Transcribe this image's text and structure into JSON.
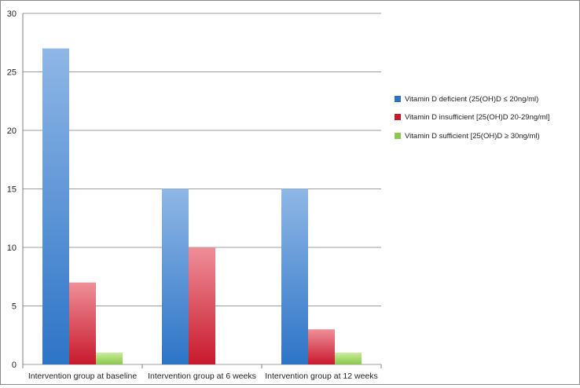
{
  "chart_data": {
    "type": "bar",
    "categories": [
      "Intervention group at baseline",
      "Intervention group at 6 weeks",
      "Intervention group at 12 weeks"
    ],
    "series": [
      {
        "name": "Vitamin D deficient (25(OH)D ≤ 20ng/ml)",
        "values": [
          27,
          15,
          15
        ],
        "color_top": "#8fb7e6",
        "color_bottom": "#2d74c7"
      },
      {
        "name": "Vitamin D insufficient [25(OH)D 20-29ng/ml]",
        "values": [
          7,
          10,
          3
        ],
        "color_top": "#ef8f98",
        "color_bottom": "#c8192d"
      },
      {
        "name": "Vitamin D sufficient [25(OH)D ≥ 30ng/ml)",
        "values": [
          1,
          0,
          1
        ],
        "color_top": "#c7ec98",
        "color_bottom": "#8bc750"
      }
    ],
    "yticks": [
      0,
      5,
      10,
      15,
      20,
      25,
      30
    ],
    "ylim": [
      0,
      30
    ],
    "grid": true,
    "legend_position": "right"
  },
  "colors": {
    "grid": "#9e9e9e",
    "axis": "#7f7f7f",
    "text": "#222222"
  }
}
